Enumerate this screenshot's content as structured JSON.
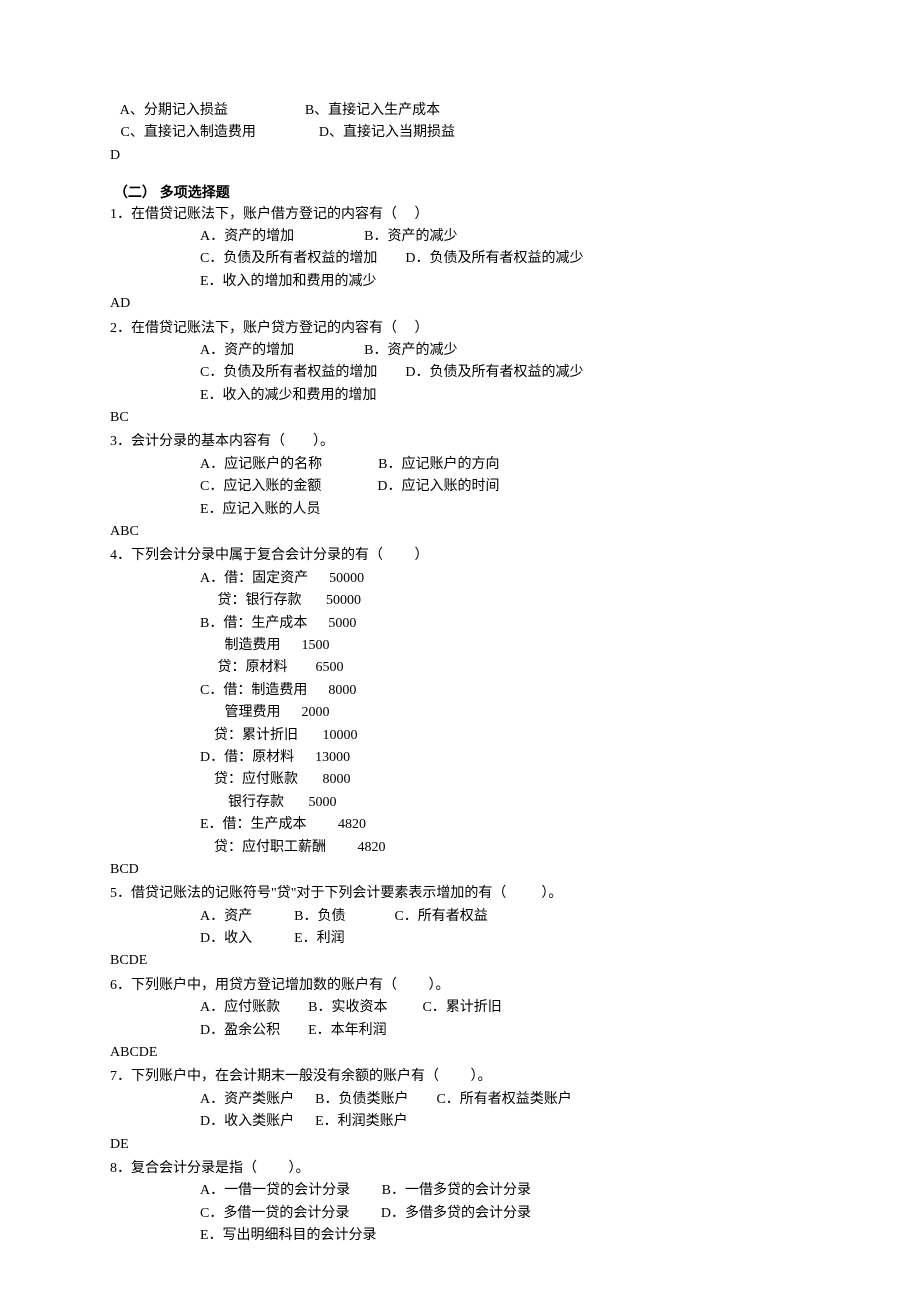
{
  "background_color": "#ffffff",
  "text_color": "#000000",
  "font_family": "SimSun",
  "font_size": 14,
  "prev_q": {
    "options_row1": "   A、分期记入损益                      B、直接记入生产成本",
    "options_row2": "   C、直接记入制造费用                  D、直接记入当期损益",
    "answer": "D"
  },
  "section_title": " （二） 多项选择题",
  "questions": [
    {
      "num": "1",
      "stem": "1．在借贷记账法下，账户借方登记的内容有（     ）",
      "lines": [
        "A．资产的增加                    B．资产的减少",
        "C．负债及所有者权益的增加        D．负债及所有者权益的减少",
        "E．收入的增加和费用的减少"
      ],
      "answer": "AD"
    },
    {
      "num": "2",
      "stem": "2．在借贷记账法下，账户贷方登记的内容有（     ）",
      "lines": [
        "A．资产的增加                    B．资产的减少",
        "C．负债及所有者权益的增加        D．负债及所有者权益的减少",
        "E．收入的减少和费用的增加"
      ],
      "answer": "BC"
    },
    {
      "num": "3",
      "stem": "3．会计分录的基本内容有（        ）。",
      "lines": [
        "A．应记账户的名称                B．应记账户的方向",
        "C．应记入账的金额                D．应记入账的时间",
        "E．应记入账的人员"
      ],
      "answer": "ABC"
    },
    {
      "num": "4",
      "stem": "4．下列会计分录中属于复合会计分录的有（         ）",
      "lines": [
        "A．借：固定资产      50000",
        "     贷：银行存款       50000",
        "B．借：生产成本      5000",
        "       制造费用      1500",
        "     贷：原材料        6500",
        "C．借：制造费用      8000",
        "       管理费用      2000",
        "    贷：累计折旧       10000",
        "D．借：原材料      13000",
        "    贷：应付账款       8000",
        "        银行存款       5000",
        "E．借：生产成本         4820",
        "    贷：应付职工薪酬         4820"
      ],
      "answer": "BCD"
    },
    {
      "num": "5",
      "stem": "5．借贷记账法的记账符号\"贷\"对于下列会计要素表示增加的有（          ）。",
      "lines": [
        "A．资产            B．负债              C．所有者权益",
        "D．收入            E．利润"
      ],
      "answer": "BCDE"
    },
    {
      "num": "6",
      "stem": "6．下列账户中，用贷方登记增加数的账户有（         ）。",
      "lines": [
        "A．应付账款        B．实收资本          C．累计折旧",
        "D．盈余公积        E．本年利润"
      ],
      "answer": "ABCDE"
    },
    {
      "num": "7",
      "stem": "7．下列账户中，在会计期末一般没有余额的账户有（         ）。",
      "lines": [
        "A．资产类账户      B．负债类账户        C．所有者权益类账户",
        "D．收入类账户      E．利润类账户"
      ],
      "answer": "DE"
    },
    {
      "num": "8",
      "stem": "8．复合会计分录是指（         ）。",
      "lines": [
        "A．一借一贷的会计分录         B．一借多贷的会计分录",
        "C．多借一贷的会计分录         D．多借多贷的会计分录",
        "E．写出明细科目的会计分录"
      ],
      "answer": ""
    }
  ]
}
